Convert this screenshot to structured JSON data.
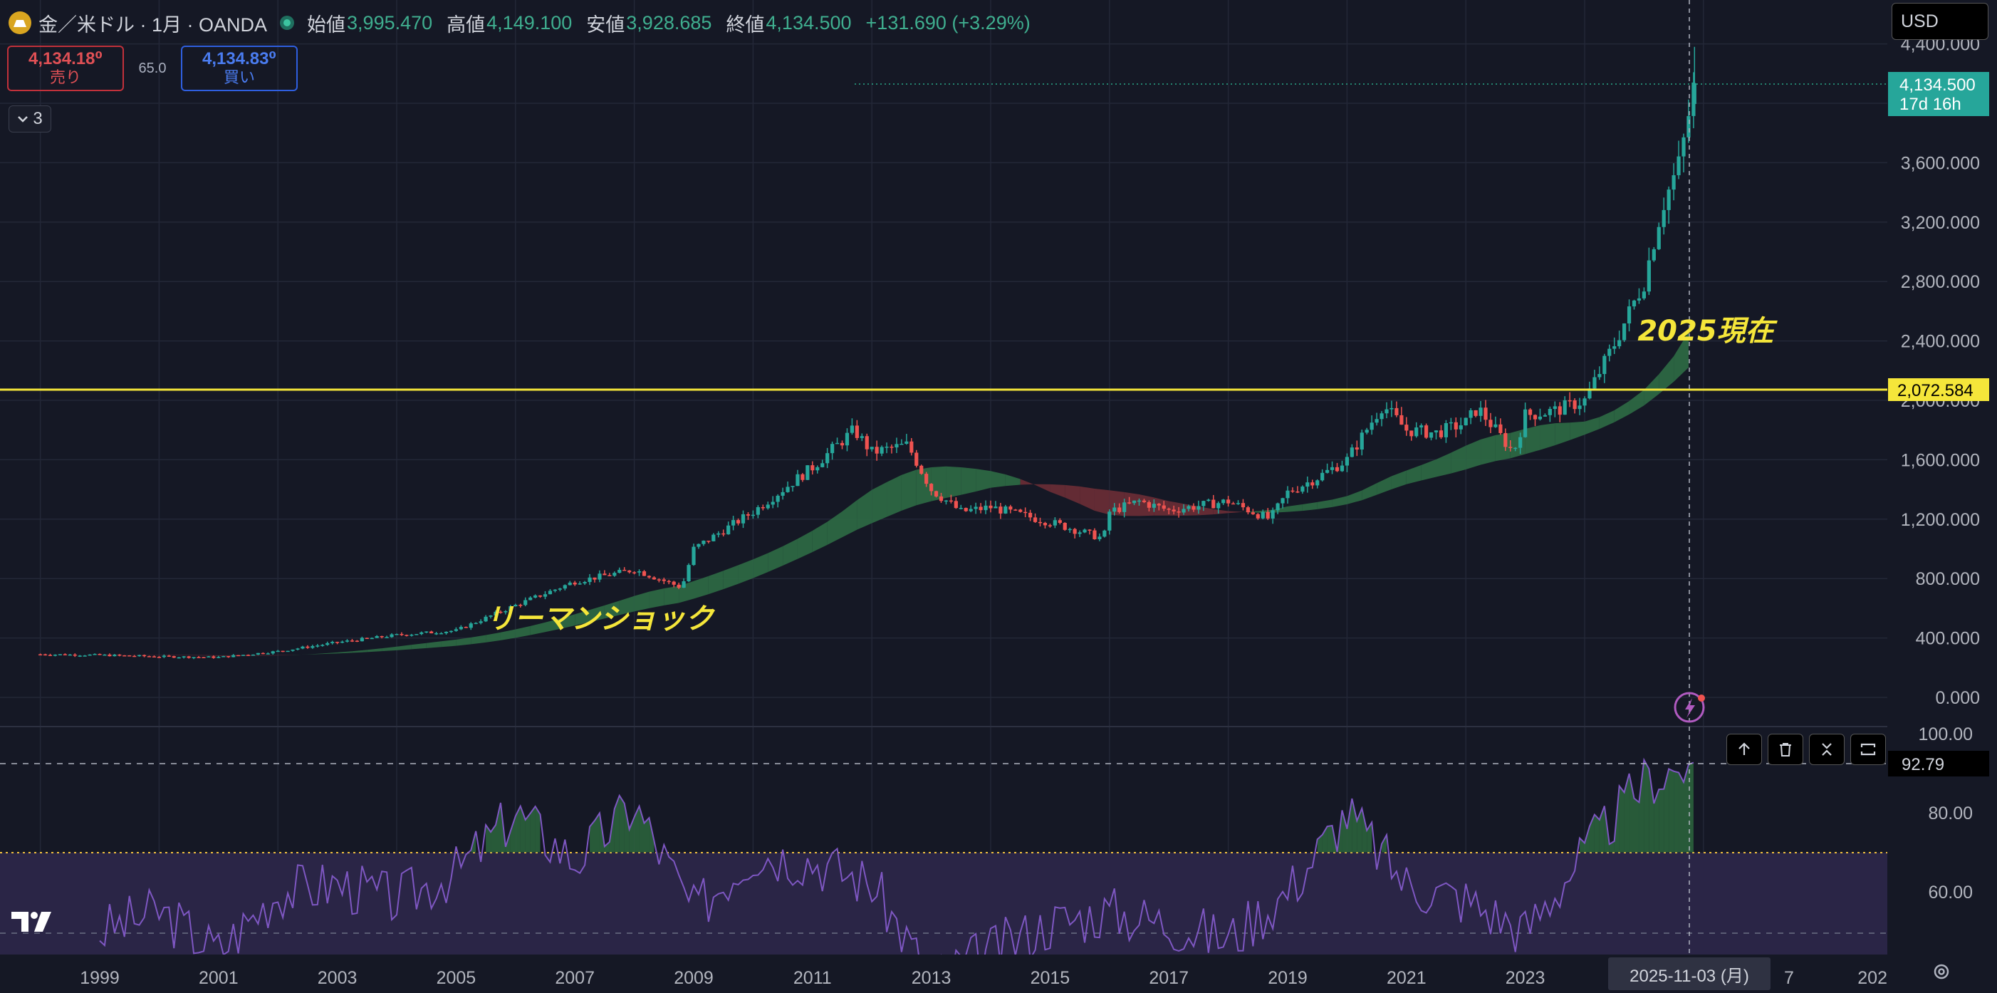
{
  "header": {
    "symbol": "金／米ドル · 1月 · OANDA",
    "open_label": "始値",
    "open": "3,995.470",
    "high_label": "高値",
    "high": "4,149.100",
    "low_label": "安値",
    "low": "3,928.685",
    "close_label": "終値",
    "close": "4,134.500",
    "change": "+131.690 (+3.29%)"
  },
  "trade": {
    "sell_price": "4,134.18⁰",
    "sell_label": "売り",
    "spread": "65.0",
    "buy_price": "4,134.83⁰",
    "buy_label": "買い"
  },
  "legend_count": "3",
  "currency": "USD",
  "annotations": {
    "lehman": "リーマンショック",
    "now": "2025現在"
  },
  "price_axis": {
    "ticks": [
      "4,400.000",
      "3,600.000",
      "3,200.000",
      "2,800.000",
      "2,400.000",
      "2,000.000",
      "1,600.000",
      "1,200.000",
      "800.000",
      "400.000",
      "0.000"
    ],
    "current_price": "4,134.500",
    "countdown": "17d 16h",
    "hline_price": "2,072.584"
  },
  "rsi_axis": {
    "ticks": [
      "100.00",
      "80.00",
      "60.00"
    ],
    "current": "92.79"
  },
  "time_axis": {
    "ticks": [
      "1999",
      "2001",
      "2003",
      "2005",
      "2007",
      "2009",
      "2011",
      "2013",
      "2015",
      "2017",
      "2019",
      "2021",
      "2023",
      "2025-11-03 (月)",
      "7",
      "202"
    ]
  },
  "colors": {
    "up": "#26a69a",
    "down": "#ef5350",
    "rsi": "#7e57c2",
    "hline": "#f5e63a",
    "annotation": "#f5e63a",
    "background": "#151825"
  },
  "icons": [
    "gold-symbol-icon",
    "chevron-down-icon",
    "lightning-icon",
    "arrow-up-icon",
    "trash-icon",
    "collapse-icon",
    "maximize-icon",
    "tradingview-logo-icon",
    "gear-icon"
  ],
  "chart_data": {
    "type": "candlestick",
    "x_range": [
      1998,
      2027
    ],
    "y_range": [
      0,
      4400
    ],
    "series": [
      {
        "name": "",
        "x": [
          1998,
          1999,
          2000,
          2001,
          2002,
          2003,
          2004,
          2005,
          2006,
          2007,
          2008,
          2008.8,
          2009,
          2010,
          2011,
          2011.7,
          2012,
          2012.6,
          2013,
          2013.5,
          2014,
          2015,
          2015.9,
          2016,
          2016.5,
          2017,
          2018,
          2018.7,
          2019,
          2019.5,
          2020,
          2020.6,
          2021,
          2021.5,
          2022,
          2022.2,
          2022.8,
          2023,
          2023.5,
          2024,
          2024.5,
          2025,
          2025.3,
          2025.6,
          2025.85
        ],
        "values": [
          290,
          285,
          275,
          270,
          310,
          370,
          420,
          450,
          620,
          780,
          860,
          740,
          1000,
          1250,
          1550,
          1800,
          1650,
          1700,
          1400,
          1250,
          1280,
          1180,
          1070,
          1250,
          1320,
          1260,
          1320,
          1200,
          1380,
          1480,
          1600,
          1970,
          1800,
          1780,
          1850,
          1950,
          1650,
          1900,
          1930,
          2000,
          2380,
          2800,
          3300,
          3600,
          4134
        ]
      }
    ],
    "rsi": {
      "x": [
        1999,
        2000,
        2001,
        2002,
        2003,
        2004,
        2005,
        2006,
        2007,
        2008,
        2009,
        2010,
        2011,
        2012,
        2013,
        2014,
        2015,
        2016,
        2017,
        2018,
        2019,
        2020,
        2021,
        2022,
        2023,
        2024,
        2025,
        2025.85
      ],
      "values": [
        50,
        55,
        45,
        60,
        62,
        58,
        65,
        80,
        68,
        82,
        55,
        70,
        68,
        62,
        38,
        45,
        52,
        55,
        52,
        48,
        60,
        80,
        62,
        58,
        50,
        70,
        88,
        92.79
      ]
    }
  }
}
